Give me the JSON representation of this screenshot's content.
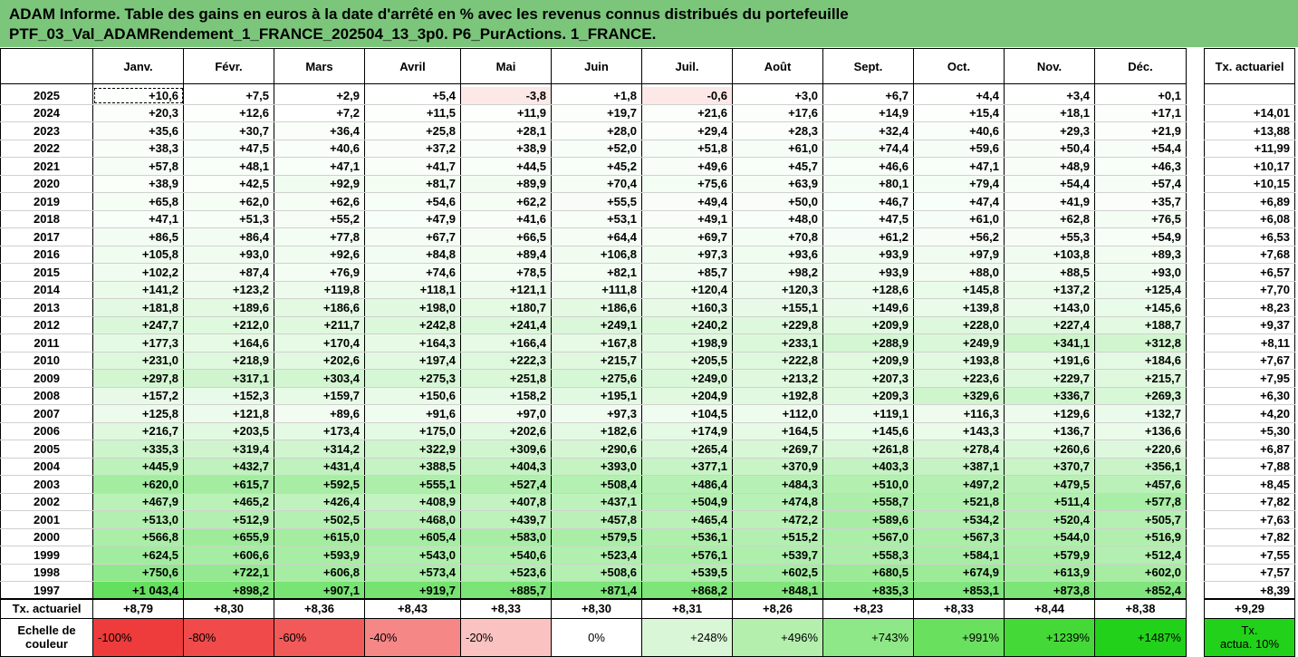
{
  "title": {
    "line1": "ADAM Informe. Table des gains en euros à la date d'arrêté en % avec les revenus connus distribués du portefeuille",
    "line2": "PTF_03_Val_ADAMRendement_1_FRANCE_202504_13_3p0. P6_PurActions. 1_FRANCE."
  },
  "months": [
    "Janv.",
    "Févr.",
    "Mars",
    "Avril",
    "Mai",
    "Juin",
    "Juil.",
    "Août",
    "Sept.",
    "Oct.",
    "Nov.",
    "Déc."
  ],
  "rate_header": "Tx. actuariel",
  "rows": [
    {
      "year": "2025",
      "values": [
        "+10,6",
        "+7,5",
        "+2,9",
        "+5,4",
        "-3,8",
        "+1,8",
        "-0,6",
        "+3,0",
        "+6,7",
        "+4,4",
        "+3,4",
        "+0,1"
      ],
      "rate": ""
    },
    {
      "year": "2024",
      "values": [
        "+20,3",
        "+12,6",
        "+7,2",
        "+11,5",
        "+11,9",
        "+19,7",
        "+21,6",
        "+17,6",
        "+14,9",
        "+15,4",
        "+18,1",
        "+17,1"
      ],
      "rate": "+14,01"
    },
    {
      "year": "2023",
      "values": [
        "+35,6",
        "+30,7",
        "+36,4",
        "+25,8",
        "+28,1",
        "+28,0",
        "+29,4",
        "+28,3",
        "+32,4",
        "+40,6",
        "+29,3",
        "+21,9"
      ],
      "rate": "+13,88"
    },
    {
      "year": "2022",
      "values": [
        "+38,3",
        "+47,5",
        "+40,6",
        "+37,2",
        "+38,9",
        "+52,0",
        "+51,8",
        "+61,0",
        "+74,4",
        "+59,6",
        "+50,4",
        "+54,4"
      ],
      "rate": "+11,99"
    },
    {
      "year": "2021",
      "values": [
        "+57,8",
        "+48,1",
        "+47,1",
        "+41,7",
        "+44,5",
        "+45,2",
        "+49,6",
        "+45,7",
        "+46,6",
        "+47,1",
        "+48,9",
        "+46,3"
      ],
      "rate": "+10,17"
    },
    {
      "year": "2020",
      "values": [
        "+38,9",
        "+42,5",
        "+92,9",
        "+81,7",
        "+89,9",
        "+70,4",
        "+75,6",
        "+63,9",
        "+80,1",
        "+79,4",
        "+54,4",
        "+57,4"
      ],
      "rate": "+10,15"
    },
    {
      "year": "2019",
      "values": [
        "+65,8",
        "+62,0",
        "+62,6",
        "+54,6",
        "+62,2",
        "+55,5",
        "+49,4",
        "+50,0",
        "+46,7",
        "+47,4",
        "+41,9",
        "+35,7"
      ],
      "rate": "+6,89"
    },
    {
      "year": "2018",
      "values": [
        "+47,1",
        "+51,3",
        "+55,2",
        "+47,9",
        "+41,6",
        "+53,1",
        "+49,1",
        "+48,0",
        "+47,5",
        "+61,0",
        "+62,8",
        "+76,5"
      ],
      "rate": "+6,08"
    },
    {
      "year": "2017",
      "values": [
        "+86,5",
        "+86,4",
        "+77,8",
        "+67,7",
        "+66,5",
        "+64,4",
        "+69,7",
        "+70,8",
        "+61,2",
        "+56,2",
        "+55,3",
        "+54,9"
      ],
      "rate": "+6,53"
    },
    {
      "year": "2016",
      "values": [
        "+105,8",
        "+93,0",
        "+92,6",
        "+84,8",
        "+89,4",
        "+106,8",
        "+97,3",
        "+93,6",
        "+93,9",
        "+97,9",
        "+103,8",
        "+89,3"
      ],
      "rate": "+7,68"
    },
    {
      "year": "2015",
      "values": [
        "+102,2",
        "+87,4",
        "+76,9",
        "+74,6",
        "+78,5",
        "+82,1",
        "+85,7",
        "+98,2",
        "+93,9",
        "+88,0",
        "+88,5",
        "+93,0"
      ],
      "rate": "+6,57"
    },
    {
      "year": "2014",
      "values": [
        "+141,2",
        "+123,2",
        "+119,8",
        "+118,1",
        "+121,1",
        "+111,8",
        "+120,4",
        "+120,3",
        "+128,6",
        "+145,8",
        "+137,2",
        "+125,4"
      ],
      "rate": "+7,70"
    },
    {
      "year": "2013",
      "values": [
        "+181,8",
        "+189,6",
        "+186,6",
        "+198,0",
        "+180,7",
        "+186,6",
        "+160,3",
        "+155,1",
        "+149,6",
        "+139,8",
        "+143,0",
        "+145,6"
      ],
      "rate": "+8,23"
    },
    {
      "year": "2012",
      "values": [
        "+247,7",
        "+212,0",
        "+211,7",
        "+242,8",
        "+241,4",
        "+249,1",
        "+240,2",
        "+229,8",
        "+209,9",
        "+228,0",
        "+227,4",
        "+188,7"
      ],
      "rate": "+9,37"
    },
    {
      "year": "2011",
      "values": [
        "+177,3",
        "+164,6",
        "+170,4",
        "+164,3",
        "+166,4",
        "+167,8",
        "+198,9",
        "+233,1",
        "+288,9",
        "+249,9",
        "+341,1",
        "+312,8"
      ],
      "rate": "+8,11"
    },
    {
      "year": "2010",
      "values": [
        "+231,0",
        "+218,9",
        "+202,6",
        "+197,4",
        "+222,3",
        "+215,7",
        "+205,5",
        "+222,8",
        "+209,9",
        "+193,8",
        "+191,6",
        "+184,6"
      ],
      "rate": "+7,67"
    },
    {
      "year": "2009",
      "values": [
        "+297,8",
        "+317,1",
        "+303,4",
        "+275,3",
        "+251,8",
        "+275,6",
        "+249,0",
        "+213,2",
        "+207,3",
        "+223,6",
        "+229,7",
        "+215,7"
      ],
      "rate": "+7,95"
    },
    {
      "year": "2008",
      "values": [
        "+157,2",
        "+152,3",
        "+159,7",
        "+150,6",
        "+158,2",
        "+195,1",
        "+204,9",
        "+192,8",
        "+209,3",
        "+329,6",
        "+336,7",
        "+269,3"
      ],
      "rate": "+6,30"
    },
    {
      "year": "2007",
      "values": [
        "+125,8",
        "+121,8",
        "+89,6",
        "+91,6",
        "+97,0",
        "+97,3",
        "+104,5",
        "+112,0",
        "+119,1",
        "+116,3",
        "+129,6",
        "+132,7"
      ],
      "rate": "+4,20"
    },
    {
      "year": "2006",
      "values": [
        "+216,7",
        "+203,5",
        "+173,4",
        "+175,0",
        "+202,6",
        "+182,6",
        "+174,9",
        "+164,5",
        "+145,6",
        "+143,3",
        "+136,7",
        "+136,6"
      ],
      "rate": "+5,30"
    },
    {
      "year": "2005",
      "values": [
        "+335,3",
        "+319,4",
        "+314,2",
        "+322,9",
        "+309,6",
        "+290,6",
        "+265,4",
        "+269,7",
        "+261,8",
        "+278,4",
        "+260,6",
        "+220,6"
      ],
      "rate": "+6,87"
    },
    {
      "year": "2004",
      "values": [
        "+445,9",
        "+432,7",
        "+431,4",
        "+388,5",
        "+404,3",
        "+393,0",
        "+377,1",
        "+370,9",
        "+403,3",
        "+387,1",
        "+370,7",
        "+356,1"
      ],
      "rate": "+7,88"
    },
    {
      "year": "2003",
      "values": [
        "+620,0",
        "+615,7",
        "+592,5",
        "+555,1",
        "+527,4",
        "+508,4",
        "+486,4",
        "+484,3",
        "+510,0",
        "+497,2",
        "+479,5",
        "+457,6"
      ],
      "rate": "+8,45"
    },
    {
      "year": "2002",
      "values": [
        "+467,9",
        "+465,2",
        "+426,4",
        "+408,9",
        "+407,8",
        "+437,1",
        "+504,9",
        "+474,8",
        "+558,7",
        "+521,8",
        "+511,4",
        "+577,8"
      ],
      "rate": "+7,82"
    },
    {
      "year": "2001",
      "values": [
        "+513,0",
        "+512,9",
        "+502,5",
        "+468,0",
        "+439,7",
        "+457,8",
        "+465,4",
        "+472,2",
        "+589,6",
        "+534,2",
        "+520,4",
        "+505,7"
      ],
      "rate": "+7,63"
    },
    {
      "year": "2000",
      "values": [
        "+566,8",
        "+655,9",
        "+615,0",
        "+605,4",
        "+583,0",
        "+579,5",
        "+536,1",
        "+515,2",
        "+567,0",
        "+567,3",
        "+544,0",
        "+516,9"
      ],
      "rate": "+7,82"
    },
    {
      "year": "1999",
      "values": [
        "+624,5",
        "+606,6",
        "+593,9",
        "+543,0",
        "+540,6",
        "+523,4",
        "+576,1",
        "+539,7",
        "+558,3",
        "+584,1",
        "+579,9",
        "+512,4"
      ],
      "rate": "+7,55"
    },
    {
      "year": "1998",
      "values": [
        "+750,6",
        "+722,1",
        "+606,8",
        "+573,4",
        "+523,6",
        "+508,6",
        "+539,5",
        "+602,5",
        "+680,5",
        "+674,9",
        "+613,9",
        "+602,0"
      ],
      "rate": "+7,57"
    },
    {
      "year": "1997",
      "values": [
        "+1 043,4",
        "+898,2",
        "+907,1",
        "+919,7",
        "+885,7",
        "+871,4",
        "+868,2",
        "+848,1",
        "+835,3",
        "+853,1",
        "+873,8",
        "+852,4"
      ],
      "rate": "+8,39"
    }
  ],
  "tx_row": {
    "label": "Tx. actuariel",
    "values": [
      "+8,79",
      "+8,30",
      "+8,36",
      "+8,43",
      "+8,33",
      "+8,30",
      "+8,31",
      "+8,26",
      "+8,23",
      "+8,33",
      "+8,44",
      "+8,38"
    ],
    "total": "+9,29"
  },
  "scale": {
    "label_line1": "Echelle de",
    "label_line2": "couleur",
    "items": [
      {
        "text": "-100%",
        "color": "#ee3b3b",
        "align": "left"
      },
      {
        "text": "-80%",
        "color": "#f04a4a",
        "align": "left"
      },
      {
        "text": "-60%",
        "color": "#f25a5a",
        "align": "left"
      },
      {
        "text": "-40%",
        "color": "#f68787",
        "align": "left"
      },
      {
        "text": "-20%",
        "color": "#fbc2c2",
        "align": "left"
      },
      {
        "text": "0%",
        "color": "#ffffff",
        "align": "center"
      },
      {
        "text": "+248%",
        "color": "#d9f6d6",
        "align": "right"
      },
      {
        "text": "+496%",
        "color": "#b4efae",
        "align": "right"
      },
      {
        "text": "+743%",
        "color": "#8fe887",
        "align": "right"
      },
      {
        "text": "+991%",
        "color": "#6ae05f",
        "align": "right"
      },
      {
        "text": "+1239%",
        "color": "#45d938",
        "align": "right"
      },
      {
        "text": "+1487%",
        "color": "#22d21a",
        "align": "right"
      }
    ],
    "right_line1": "Tx.",
    "right_line2": "actua. 10%",
    "right_color": "#22d21a"
  },
  "colors": {
    "title_bg": "#7bc67b",
    "negative_cell": "#fde8e8",
    "positive_max": "#22d21a"
  }
}
